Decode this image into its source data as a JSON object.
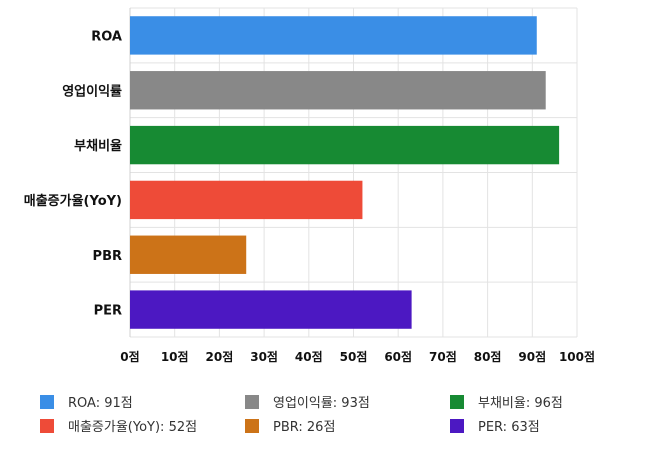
{
  "chart_data": {
    "type": "bar",
    "orientation": "horizontal",
    "categories": [
      "ROA",
      "영업이익률",
      "부채비율",
      "매출증가율(YoY)",
      "PBR",
      "PER"
    ],
    "values": [
      91,
      93,
      96,
      52,
      26,
      63
    ],
    "colors": [
      "#3a8ee6",
      "#888888",
      "#178a33",
      "#ee4b38",
      "#cc7318",
      "#4c18c2"
    ],
    "xlim": [
      0,
      100
    ],
    "x_ticks": [
      0,
      10,
      20,
      30,
      40,
      50,
      60,
      70,
      80,
      90,
      100
    ],
    "x_tick_labels": [
      "0점",
      "10점",
      "20점",
      "30점",
      "40점",
      "50점",
      "60점",
      "70점",
      "80점",
      "90점",
      "100점"
    ],
    "grid": true,
    "legend_position": "bottom",
    "legend": [
      {
        "label": "ROA: 91점",
        "color": "#3a8ee6"
      },
      {
        "label": "영업이익률: 93점",
        "color": "#888888"
      },
      {
        "label": "부채비율: 96점",
        "color": "#178a33"
      },
      {
        "label": "매출증가율(YoY): 52점",
        "color": "#ee4b38"
      },
      {
        "label": "PBR: 26점",
        "color": "#cc7318"
      },
      {
        "label": "PER: 63점",
        "color": "#4c18c2"
      }
    ]
  }
}
